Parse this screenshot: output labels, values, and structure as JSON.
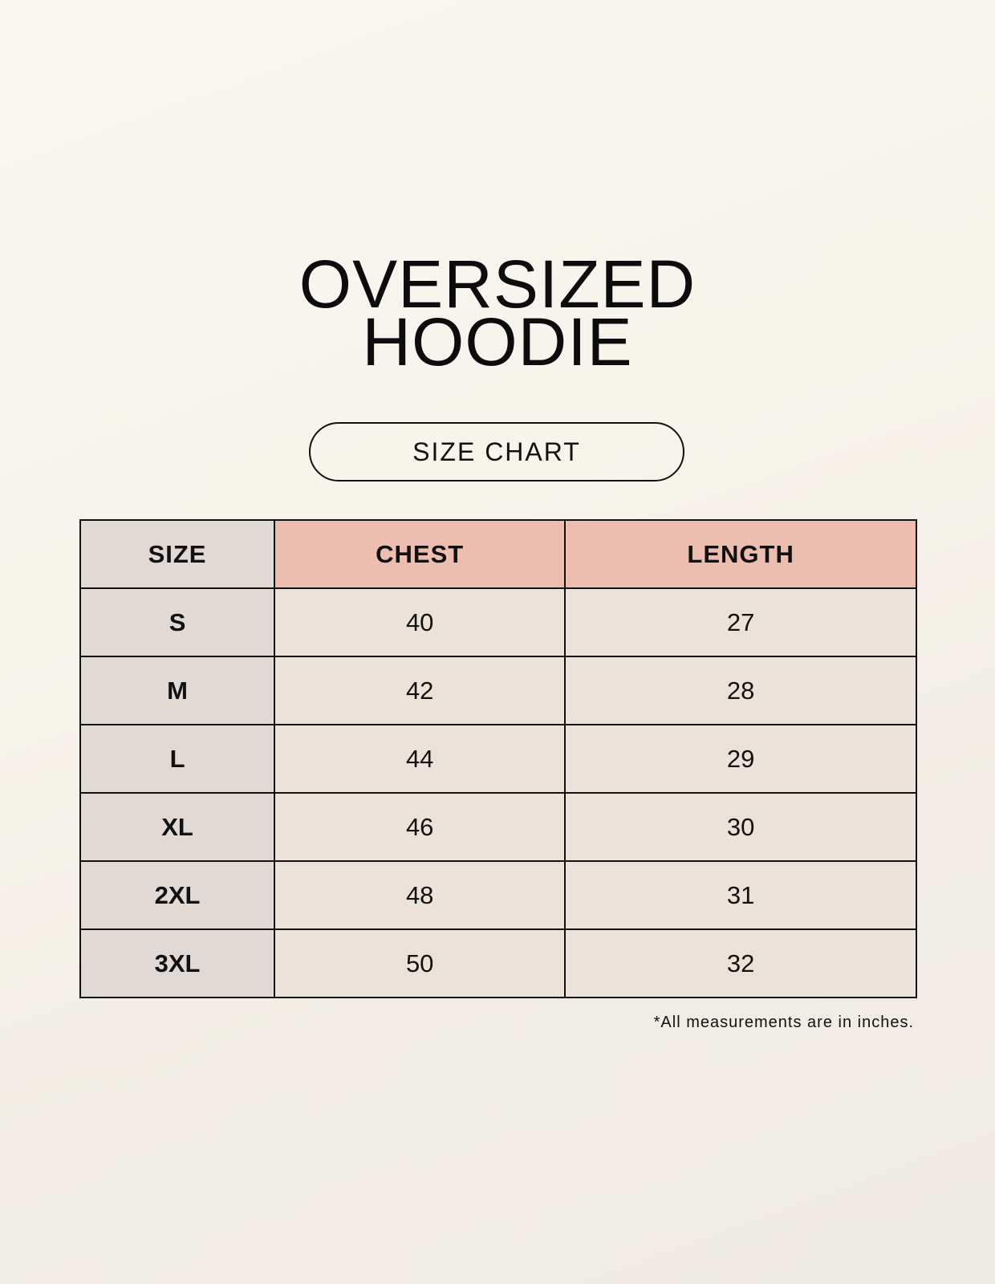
{
  "title": {
    "line1": "OVERSIZED",
    "line2": "HOODIE"
  },
  "subtitle": "SIZE CHART",
  "table": {
    "headers": [
      "SIZE",
      "CHEST",
      "LENGTH"
    ],
    "rows": [
      [
        "S",
        "40",
        "27"
      ],
      [
        "M",
        "42",
        "28"
      ],
      [
        "L",
        "44",
        "29"
      ],
      [
        "XL",
        "46",
        "30"
      ],
      [
        "2XL",
        "48",
        "31"
      ],
      [
        "3XL",
        "50",
        "32"
      ]
    ]
  },
  "note": "*All measurements are in inches.",
  "colors": {
    "size_column": "#e0d9d4",
    "measure_header": "#edbdb0",
    "measure_cells": "#ebe3da"
  }
}
